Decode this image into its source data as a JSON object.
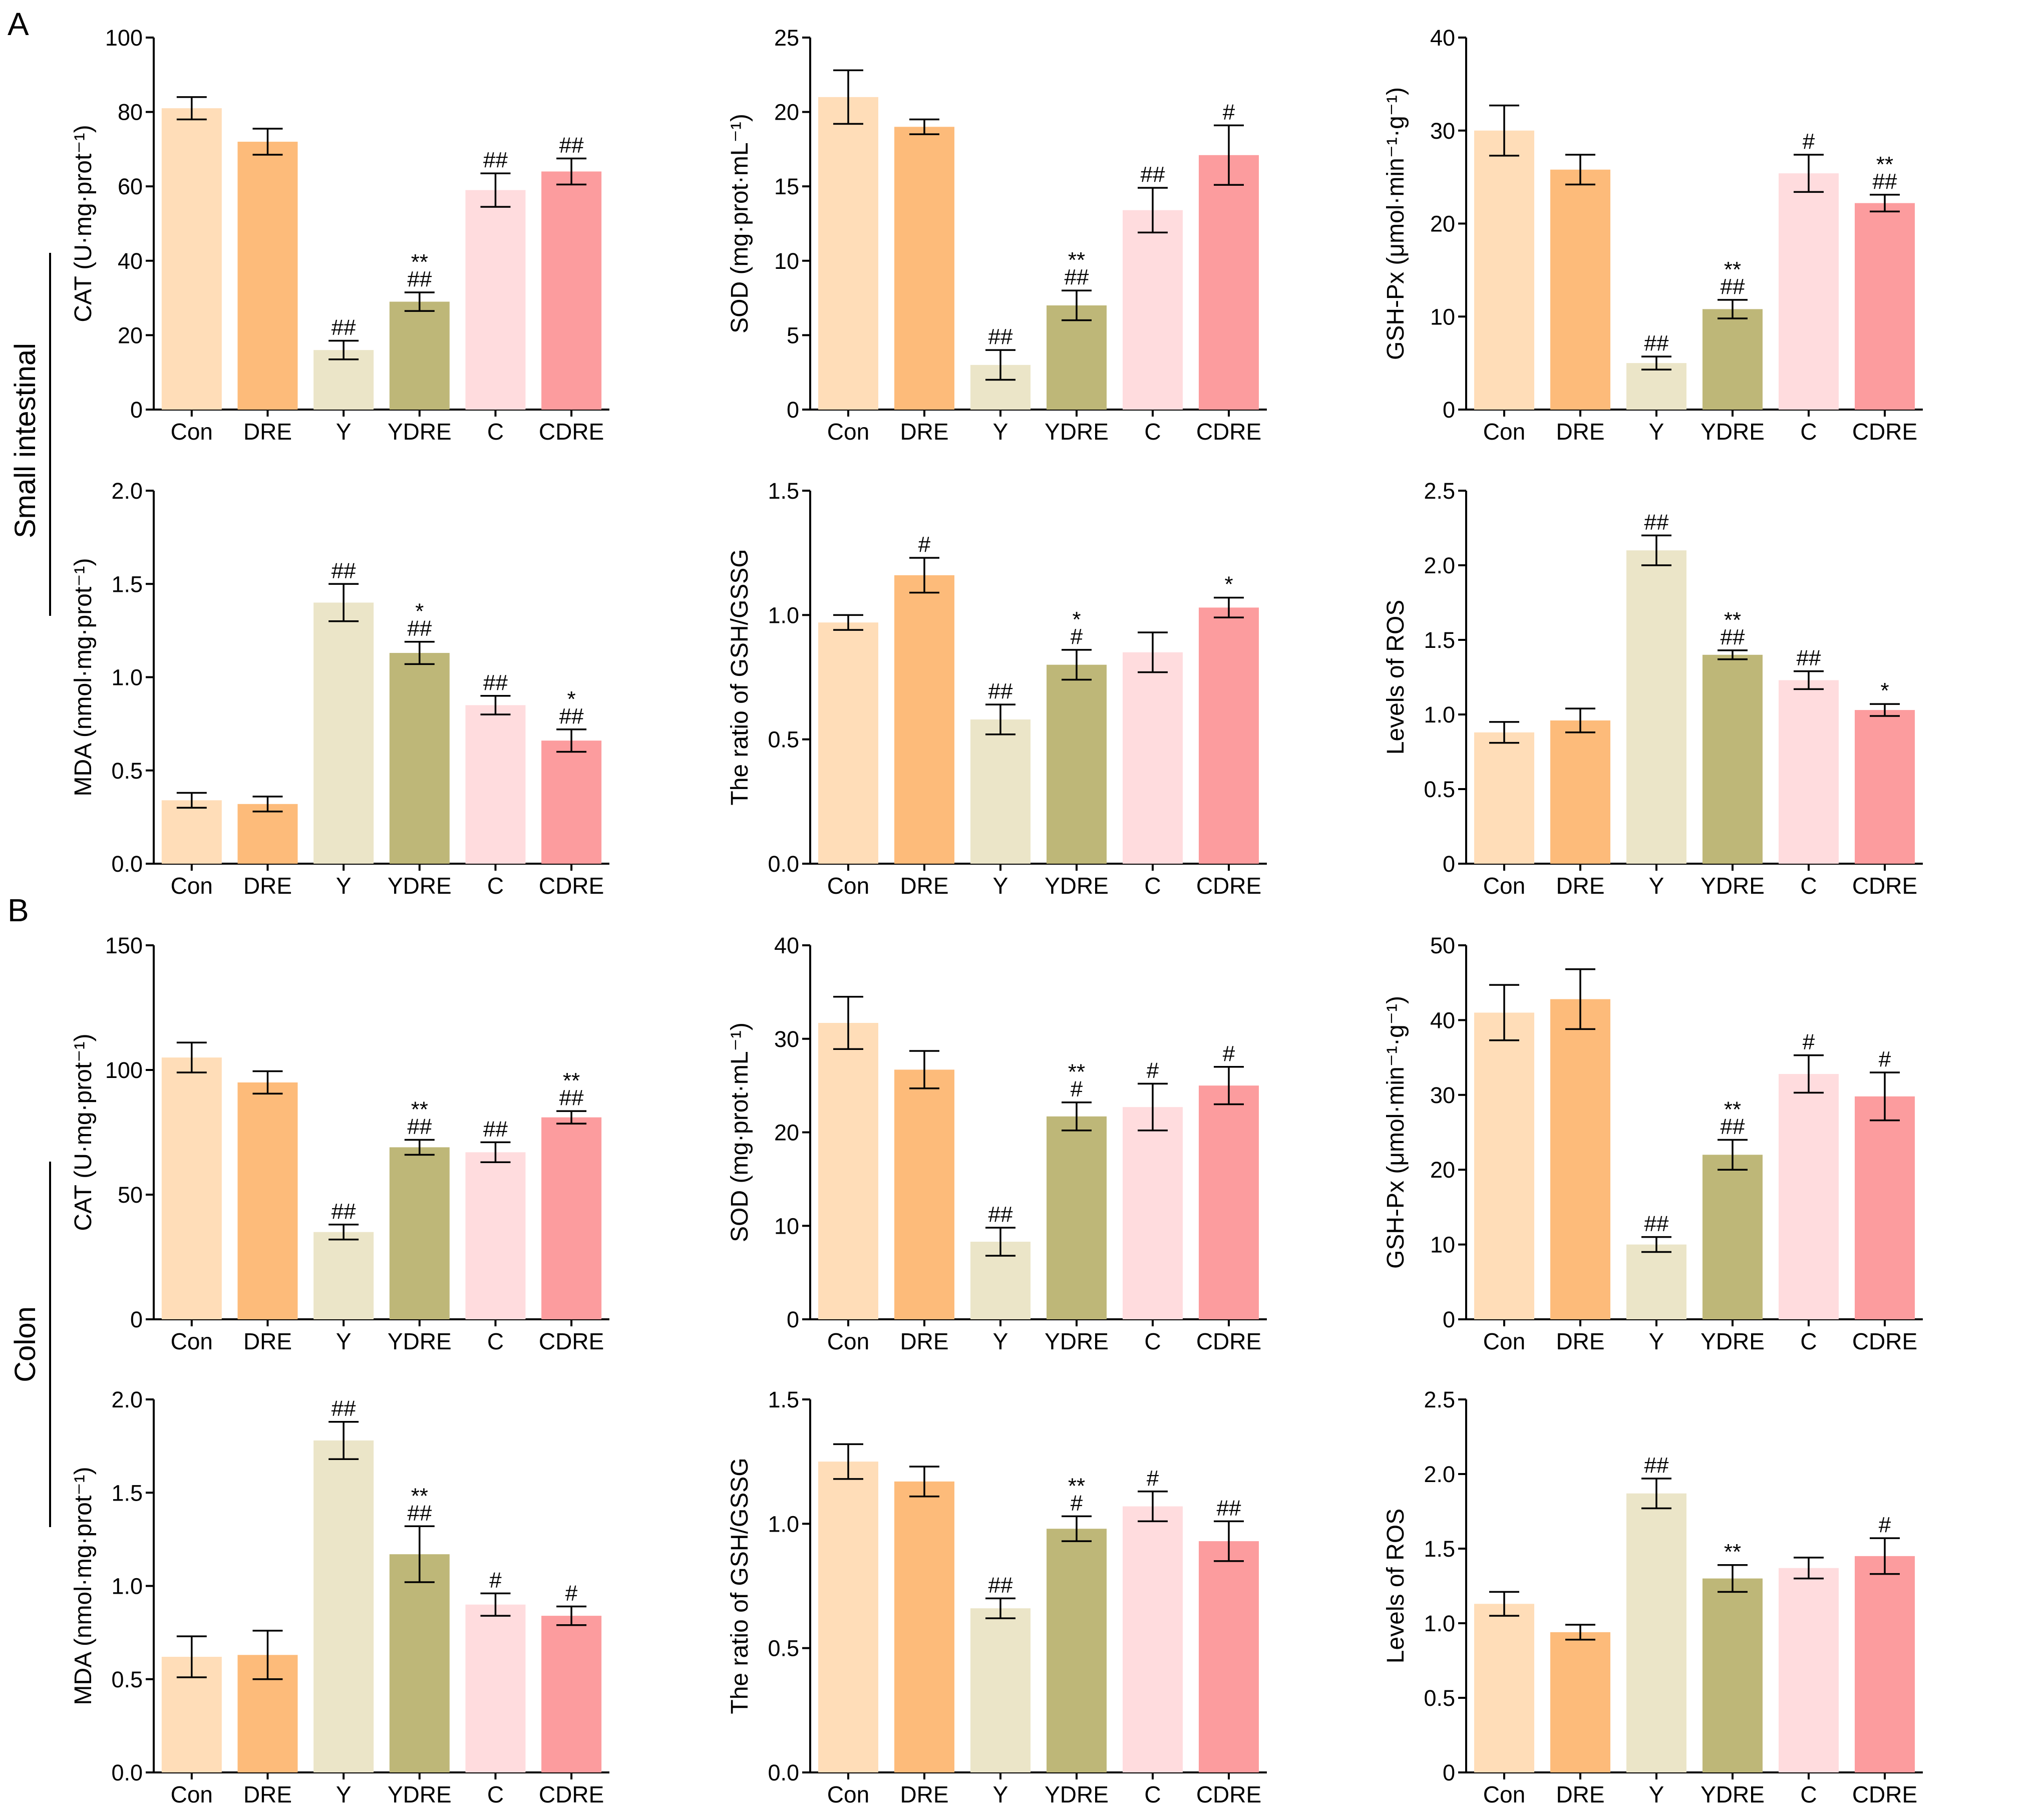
{
  "figure": {
    "panel_labels": [
      "A",
      "B"
    ],
    "row_labels": [
      "Small intestinal",
      "Colon"
    ]
  },
  "colors": {
    "bars": [
      "#FFDDB8",
      "#FDBB7A",
      "#EBE5C8",
      "#BEB778",
      "#FFDCDE",
      "#FC9C9E"
    ],
    "axis": "#000000"
  },
  "chart_data": [
    {
      "type": "bar",
      "panel": "A",
      "title": "",
      "xlabel": "",
      "ylabel": "CAT (U·mg·prot⁻¹)",
      "ylim": [
        0,
        100
      ],
      "yticks": [
        "0",
        "20",
        "40",
        "60",
        "80",
        "100"
      ],
      "categories": [
        "Con",
        "DRE",
        "Y",
        "YDRE",
        "C",
        "CDRE"
      ],
      "values": [
        81,
        72,
        16,
        29,
        59,
        64
      ],
      "errors": [
        3,
        3.5,
        2.5,
        2.5,
        4.5,
        3.5
      ],
      "annotations": [
        [
          "",
          ""
        ],
        [
          "",
          ""
        ],
        [
          "##",
          ""
        ],
        [
          "##",
          "**"
        ],
        [
          "##",
          ""
        ],
        [
          "##",
          ""
        ]
      ]
    },
    {
      "type": "bar",
      "panel": "A",
      "title": "",
      "xlabel": "",
      "ylabel": "SOD (mg·prot·mL⁻¹)",
      "ylim": [
        0,
        25
      ],
      "yticks": [
        "0",
        "5",
        "10",
        "15",
        "20",
        "25"
      ],
      "categories": [
        "Con",
        "DRE",
        "Y",
        "YDRE",
        "C",
        "CDRE"
      ],
      "values": [
        21,
        19,
        3,
        7,
        13.4,
        17.1
      ],
      "errors": [
        1.8,
        0.5,
        1,
        1,
        1.5,
        2
      ],
      "annotations": [
        [
          "",
          ""
        ],
        [
          "",
          ""
        ],
        [
          "##",
          ""
        ],
        [
          "##",
          "**"
        ],
        [
          "##",
          ""
        ],
        [
          "#",
          ""
        ]
      ]
    },
    {
      "type": "bar",
      "panel": "A",
      "title": "",
      "xlabel": "",
      "ylabel": "GSH-Px (μmol·min⁻¹·g⁻¹)",
      "ylim": [
        0,
        40
      ],
      "yticks": [
        "0",
        "10",
        "20",
        "30",
        "40"
      ],
      "categories": [
        "Con",
        "DRE",
        "Y",
        "YDRE",
        "C",
        "CDRE"
      ],
      "values": [
        30,
        25.8,
        5,
        10.8,
        25.4,
        22.2
      ],
      "errors": [
        2.7,
        1.6,
        0.7,
        1,
        2,
        0.9
      ],
      "annotations": [
        [
          "",
          ""
        ],
        [
          "",
          ""
        ],
        [
          "##",
          ""
        ],
        [
          "##",
          "**"
        ],
        [
          "#",
          ""
        ],
        [
          "##",
          "**"
        ]
      ]
    },
    {
      "type": "bar",
      "panel": "A",
      "title": "",
      "xlabel": "",
      "ylabel": "MDA (nmol·mg·prot⁻¹)",
      "ylim": [
        0,
        2.0
      ],
      "yticks": [
        "0.0",
        "0.5",
        "1.0",
        "1.5",
        "2.0"
      ],
      "categories": [
        "Con",
        "DRE",
        "Y",
        "YDRE",
        "C",
        "CDRE"
      ],
      "values": [
        0.34,
        0.32,
        1.4,
        1.13,
        0.85,
        0.66
      ],
      "errors": [
        0.04,
        0.04,
        0.1,
        0.06,
        0.05,
        0.06
      ],
      "annotations": [
        [
          "",
          ""
        ],
        [
          "",
          ""
        ],
        [
          "##",
          ""
        ],
        [
          "##",
          "*"
        ],
        [
          "##",
          ""
        ],
        [
          "##",
          "*"
        ]
      ]
    },
    {
      "type": "bar",
      "panel": "A",
      "title": "",
      "xlabel": "",
      "ylabel": "The ratio of GSH/GSSG",
      "ylim": [
        0,
        1.5
      ],
      "yticks": [
        "0.0",
        "0.5",
        "1.0",
        "1.5"
      ],
      "categories": [
        "Con",
        "DRE",
        "Y",
        "YDRE",
        "C",
        "CDRE"
      ],
      "values": [
        0.97,
        1.16,
        0.58,
        0.8,
        0.85,
        1.03
      ],
      "errors": [
        0.03,
        0.07,
        0.06,
        0.06,
        0.08,
        0.04
      ],
      "annotations": [
        [
          "",
          ""
        ],
        [
          "#",
          ""
        ],
        [
          "##",
          ""
        ],
        [
          "#",
          "*"
        ],
        [
          "",
          ""
        ],
        [
          "*",
          ""
        ]
      ]
    },
    {
      "type": "bar",
      "panel": "A",
      "title": "",
      "xlabel": "",
      "ylabel": "Levels of ROS",
      "ylim": [
        0,
        2.5
      ],
      "yticks": [
        "0",
        "0.5",
        "1.0",
        "1.5",
        "2.0",
        "2.5"
      ],
      "categories": [
        "Con",
        "DRE",
        "Y",
        "YDRE",
        "C",
        "CDRE"
      ],
      "values": [
        0.88,
        0.96,
        2.1,
        1.4,
        1.23,
        1.03
      ],
      "errors": [
        0.07,
        0.08,
        0.1,
        0.03,
        0.06,
        0.04
      ],
      "annotations": [
        [
          "",
          ""
        ],
        [
          "",
          ""
        ],
        [
          "##",
          ""
        ],
        [
          "##",
          "**"
        ],
        [
          "##",
          ""
        ],
        [
          "*",
          ""
        ]
      ]
    },
    {
      "type": "bar",
      "panel": "B",
      "title": "",
      "xlabel": "",
      "ylabel": "CAT (U·mg·prot⁻¹)",
      "ylim": [
        0,
        150
      ],
      "yticks": [
        "0",
        "50",
        "100",
        "150"
      ],
      "categories": [
        "Con",
        "DRE",
        "Y",
        "YDRE",
        "C",
        "CDRE"
      ],
      "values": [
        105,
        95,
        35,
        69,
        67,
        81
      ],
      "errors": [
        6,
        4.5,
        3,
        3,
        4,
        2.5
      ],
      "annotations": [
        [
          "",
          ""
        ],
        [
          "",
          ""
        ],
        [
          "##",
          ""
        ],
        [
          "##",
          "**"
        ],
        [
          "##",
          ""
        ],
        [
          "##",
          "**"
        ]
      ]
    },
    {
      "type": "bar",
      "panel": "B",
      "title": "",
      "xlabel": "",
      "ylabel": "SOD (mg·prot·mL⁻¹)",
      "ylim": [
        0,
        40
      ],
      "yticks": [
        "0",
        "10",
        "20",
        "30",
        "40"
      ],
      "categories": [
        "Con",
        "DRE",
        "Y",
        "YDRE",
        "C",
        "CDRE"
      ],
      "values": [
        31.7,
        26.7,
        8.3,
        21.7,
        22.7,
        25
      ],
      "errors": [
        2.8,
        2,
        1.5,
        1.5,
        2.5,
        2
      ],
      "annotations": [
        [
          "",
          ""
        ],
        [
          "",
          ""
        ],
        [
          "##",
          ""
        ],
        [
          "#",
          "**"
        ],
        [
          "#",
          ""
        ],
        [
          "#",
          ""
        ]
      ]
    },
    {
      "type": "bar",
      "panel": "B",
      "title": "",
      "xlabel": "",
      "ylabel": "GSH-Px (μmol·min⁻¹·g⁻¹)",
      "ylim": [
        0,
        50
      ],
      "yticks": [
        "0",
        "10",
        "20",
        "30",
        "40",
        "50"
      ],
      "categories": [
        "Con",
        "DRE",
        "Y",
        "YDRE",
        "C",
        "CDRE"
      ],
      "values": [
        41,
        42.8,
        10,
        22,
        32.8,
        29.8
      ],
      "errors": [
        3.7,
        4,
        1,
        2,
        2.5,
        3.2
      ],
      "annotations": [
        [
          "",
          ""
        ],
        [
          "",
          ""
        ],
        [
          "##",
          ""
        ],
        [
          "##",
          "**"
        ],
        [
          "#",
          ""
        ],
        [
          "#",
          ""
        ]
      ]
    },
    {
      "type": "bar",
      "panel": "B",
      "title": "",
      "xlabel": "",
      "ylabel": "MDA (nmol·mg·prot⁻¹)",
      "ylim": [
        0,
        2.0
      ],
      "yticks": [
        "0.0",
        "0.5",
        "1.0",
        "1.5",
        "2.0"
      ],
      "categories": [
        "Con",
        "DRE",
        "Y",
        "YDRE",
        "C",
        "CDRE"
      ],
      "values": [
        0.62,
        0.63,
        1.78,
        1.17,
        0.9,
        0.84
      ],
      "errors": [
        0.11,
        0.13,
        0.1,
        0.15,
        0.06,
        0.05
      ],
      "annotations": [
        [
          "",
          ""
        ],
        [
          "",
          ""
        ],
        [
          "##",
          ""
        ],
        [
          "##",
          "**"
        ],
        [
          "#",
          ""
        ],
        [
          "#",
          ""
        ]
      ]
    },
    {
      "type": "bar",
      "panel": "B",
      "title": "",
      "xlabel": "",
      "ylabel": "The ratio of GSH/GSSG",
      "ylim": [
        0,
        1.5
      ],
      "yticks": [
        "0.0",
        "0.5",
        "1.0",
        "1.5"
      ],
      "categories": [
        "Con",
        "DRE",
        "Y",
        "YDRE",
        "C",
        "CDRE"
      ],
      "values": [
        1.25,
        1.17,
        0.66,
        0.98,
        1.07,
        0.93
      ],
      "errors": [
        0.07,
        0.06,
        0.04,
        0.05,
        0.06,
        0.08
      ],
      "annotations": [
        [
          "",
          ""
        ],
        [
          "",
          ""
        ],
        [
          "##",
          ""
        ],
        [
          "#",
          "**"
        ],
        [
          "#",
          ""
        ],
        [
          "##",
          ""
        ]
      ]
    },
    {
      "type": "bar",
      "panel": "B",
      "title": "",
      "xlabel": "",
      "ylabel": "Levels of ROS",
      "ylim": [
        0,
        2.5
      ],
      "yticks": [
        "0",
        "0.5",
        "1.0",
        "1.5",
        "2.0",
        "2.5"
      ],
      "categories": [
        "Con",
        "DRE",
        "Y",
        "YDRE",
        "C",
        "CDRE"
      ],
      "values": [
        1.13,
        0.94,
        1.87,
        1.3,
        1.37,
        1.45
      ],
      "errors": [
        0.08,
        0.05,
        0.1,
        0.09,
        0.07,
        0.12
      ],
      "annotations": [
        [
          "",
          ""
        ],
        [
          "",
          ""
        ],
        [
          "##",
          ""
        ],
        [
          "**",
          ""
        ],
        [
          "",
          ""
        ],
        [
          "#",
          ""
        ]
      ]
    }
  ]
}
